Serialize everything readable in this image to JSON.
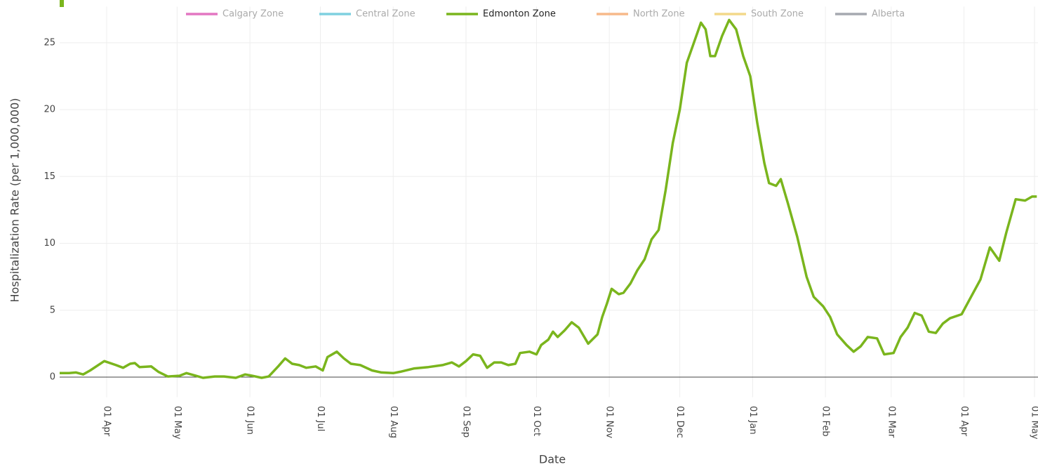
{
  "chart_data": {
    "type": "line",
    "x_label": "Date",
    "y_label": "Hospitalization Rate (per 1,000,000)",
    "xlim": [
      -20,
      396.5
    ],
    "ylim": [
      -1.5,
      27.7
    ],
    "xticks": [
      {
        "value": 0,
        "label": "01 Apr"
      },
      {
        "value": 30,
        "label": "01 May"
      },
      {
        "value": 61,
        "label": "01 Jun"
      },
      {
        "value": 91,
        "label": "01 Jul"
      },
      {
        "value": 122,
        "label": "01 Aug"
      },
      {
        "value": 153,
        "label": "01 Sep"
      },
      {
        "value": 183,
        "label": "01 Oct"
      },
      {
        "value": 214,
        "label": "01 Nov"
      },
      {
        "value": 244,
        "label": "01 Dec"
      },
      {
        "value": 275,
        "label": "01 Jan"
      },
      {
        "value": 306,
        "label": "01 Feb"
      },
      {
        "value": 334,
        "label": "01 Mar"
      },
      {
        "value": 365,
        "label": "01 Apr"
      },
      {
        "value": 395,
        "label": "01 May"
      }
    ],
    "yticks": [
      0,
      5,
      10,
      15,
      20,
      25
    ],
    "grid": true,
    "x": [
      -20,
      -16,
      -13,
      -10,
      -7,
      -1,
      4,
      7,
      10,
      12,
      14,
      19,
      22,
      26,
      31,
      34,
      38,
      41,
      46,
      50,
      55,
      59,
      62,
      66,
      69,
      73,
      76,
      79,
      82,
      85,
      89,
      92,
      94,
      98,
      101,
      104,
      108,
      113,
      117,
      122,
      125,
      131,
      137,
      143,
      147,
      150,
      153,
      156,
      159,
      162,
      165,
      168,
      171,
      174,
      176,
      180,
      183,
      185,
      188,
      190,
      192,
      195,
      198,
      201,
      205,
      209,
      211,
      213,
      215,
      218,
      220,
      223,
      226,
      229,
      232,
      235,
      238,
      241,
      244,
      247,
      250,
      253,
      255,
      257,
      259,
      262,
      265,
      268,
      271,
      274,
      277,
      280,
      282,
      285,
      287,
      290,
      294,
      298,
      301,
      305,
      308,
      311,
      315,
      318,
      321,
      324,
      328,
      331,
      335,
      338,
      341,
      344,
      347,
      350,
      353,
      356,
      359,
      364,
      368,
      372,
      376,
      380,
      383,
      387,
      391,
      394,
      396
    ],
    "series": [
      {
        "name": "Calgary Zone",
        "color": "#e377c2",
        "hidden": true
      },
      {
        "name": "Central Zone",
        "color": "#7fd0e0",
        "hidden": true
      },
      {
        "name": "Edmonton Zone",
        "color": "#7ab51d",
        "values": [
          0.3,
          0.3,
          0.35,
          0.2,
          0.5,
          1.2,
          0.9,
          0.7,
          1.0,
          1.05,
          0.75,
          0.8,
          0.4,
          0.05,
          0.1,
          0.3,
          0.1,
          -0.05,
          0.05,
          0.05,
          -0.05,
          0.2,
          0.1,
          -0.05,
          0.05,
          0.8,
          1.4,
          1.0,
          0.9,
          0.7,
          0.8,
          0.5,
          1.5,
          1.9,
          1.4,
          1.0,
          0.9,
          0.5,
          0.35,
          0.3,
          0.4,
          0.65,
          0.75,
          0.9,
          1.1,
          0.8,
          1.2,
          1.7,
          1.6,
          0.7,
          1.1,
          1.1,
          0.9,
          1.0,
          1.8,
          1.9,
          1.7,
          2.4,
          2.8,
          3.4,
          3.0,
          3.5,
          4.1,
          3.7,
          2.5,
          3.2,
          4.5,
          5.5,
          6.6,
          6.2,
          6.3,
          7.0,
          8.0,
          8.8,
          10.3,
          11.0,
          14.0,
          17.5,
          20.0,
          23.5,
          25.0,
          26.5,
          26.0,
          24.0,
          24.0,
          25.5,
          26.7,
          26.0,
          24.0,
          22.5,
          19.0,
          16.0,
          14.5,
          14.3,
          14.8,
          13.0,
          10.5,
          7.5,
          6.0,
          5.3,
          4.5,
          3.2,
          2.4,
          1.9,
          2.3,
          3.0,
          2.9,
          1.7,
          1.8,
          3.0,
          3.7,
          4.8,
          4.6,
          3.4,
          3.3,
          4.0,
          4.4,
          4.7,
          6.0,
          7.3,
          9.7,
          8.7,
          10.8,
          13.3,
          13.2,
          13.5,
          13.5
        ]
      },
      {
        "name": "North Zone",
        "color": "#f7b98a",
        "hidden": true
      },
      {
        "name": "South Zone",
        "color": "#f3d98a",
        "hidden": true
      },
      {
        "name": "Alberta",
        "color": "#a6a9b0",
        "hidden": true
      }
    ]
  }
}
